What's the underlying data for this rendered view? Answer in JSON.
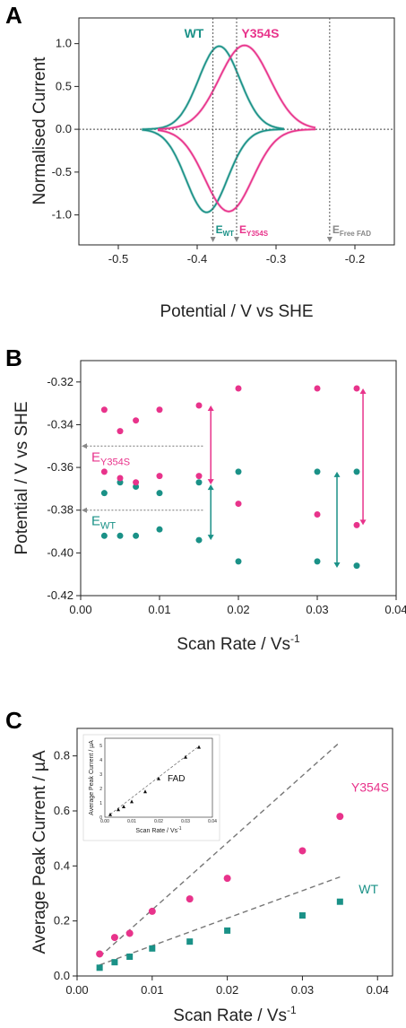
{
  "colors": {
    "wt": "#1a9187",
    "mut": "#e8338b",
    "ref": "#888888",
    "axis": "#222222"
  },
  "chart_data": [
    {
      "panel": "A",
      "type": "line",
      "xlabel": "Potential / V vs SHE",
      "ylabel": "Normalised Current",
      "xlim": [
        -0.55,
        -0.15
      ],
      "ylim": [
        -1.35,
        1.3
      ],
      "xticks": [
        "-0.5",
        "-0.4",
        "-0.3",
        "-0.2"
      ],
      "yticks": [
        "-1.0",
        "-0.5",
        "0.0",
        "0.5",
        "1.0"
      ],
      "series": [
        {
          "name": "WT",
          "oxidative_peak": {
            "x": -0.372,
            "y": 0.97
          },
          "reductive_peak": {
            "x": -0.388,
            "y": -0.97
          }
        },
        {
          "name": "Y354S",
          "oxidative_peak": {
            "x": -0.34,
            "y": 0.98
          },
          "reductive_peak": {
            "x": -0.36,
            "y": -0.96
          }
        }
      ],
      "reference_lines": [
        {
          "label": "E",
          "sub": "WT",
          "x": -0.38,
          "color": "wt"
        },
        {
          "label": "E",
          "sub": "Y354S",
          "x": -0.35,
          "color": "mut"
        },
        {
          "label": "E",
          "sub": "Free FAD",
          "x": -0.232,
          "color": "ref"
        }
      ],
      "series_labels": [
        "WT",
        "Y354S"
      ]
    },
    {
      "panel": "B",
      "type": "scatter",
      "xlabel": "Scan Rate / Vs",
      "xlabel_sup": "-1",
      "ylabel": "Potential / V vs SHE",
      "xlim": [
        0.0,
        0.04
      ],
      "ylim": [
        -0.42,
        -0.31
      ],
      "xticks": [
        "0.00",
        "0.01",
        "0.02",
        "0.03",
        "0.04"
      ],
      "yticks": [
        "-0.32",
        "-0.34",
        "-0.36",
        "-0.38",
        "-0.40",
        "-0.42"
      ],
      "series": [
        {
          "name": "WT",
          "points": [
            [
              0.003,
              -0.372
            ],
            [
              0.003,
              -0.392
            ],
            [
              0.005,
              -0.367
            ],
            [
              0.005,
              -0.392
            ],
            [
              0.007,
              -0.369
            ],
            [
              0.007,
              -0.392
            ],
            [
              0.01,
              -0.372
            ],
            [
              0.01,
              -0.389
            ],
            [
              0.015,
              -0.367
            ],
            [
              0.015,
              -0.394
            ],
            [
              0.02,
              -0.362
            ],
            [
              0.02,
              -0.404
            ],
            [
              0.03,
              -0.362
            ],
            [
              0.03,
              -0.404
            ],
            [
              0.035,
              -0.362
            ],
            [
              0.035,
              -0.406
            ]
          ]
        },
        {
          "name": "Y354S",
          "points": [
            [
              0.003,
              -0.333
            ],
            [
              0.003,
              -0.362
            ],
            [
              0.005,
              -0.343
            ],
            [
              0.005,
              -0.365
            ],
            [
              0.007,
              -0.338
            ],
            [
              0.007,
              -0.367
            ],
            [
              0.01,
              -0.333
            ],
            [
              0.01,
              -0.364
            ],
            [
              0.015,
              -0.331
            ],
            [
              0.015,
              -0.364
            ],
            [
              0.02,
              -0.323
            ],
            [
              0.02,
              -0.377
            ],
            [
              0.03,
              -0.323
            ],
            [
              0.03,
              -0.382
            ],
            [
              0.035,
              -0.323
            ],
            [
              0.035,
              -0.387
            ]
          ]
        }
      ],
      "reference_lines": [
        {
          "label": "E",
          "sub": "Y354S",
          "y": -0.35,
          "color": "mut"
        },
        {
          "label": "E",
          "sub": "WT",
          "y": -0.38,
          "color": "wt"
        }
      ],
      "arrows": [
        {
          "x": 0.0165,
          "y1": -0.331,
          "y2": -0.368,
          "color": "mut"
        },
        {
          "x": 0.0165,
          "y1": -0.368,
          "y2": -0.394,
          "color": "wt"
        },
        {
          "x": 0.0358,
          "y1": -0.323,
          "y2": -0.387,
          "color": "mut"
        },
        {
          "x": 0.0325,
          "y1": -0.362,
          "y2": -0.407,
          "color": "wt"
        }
      ]
    },
    {
      "panel": "C",
      "type": "scatter",
      "xlabel": "Scan Rate / Vs",
      "xlabel_sup": "-1",
      "ylabel": "Average Peak Current / µA",
      "xlim": [
        0.0,
        0.042
      ],
      "ylim": [
        0.0,
        0.9
      ],
      "xticks": [
        "0.00",
        "0.01",
        "0.02",
        "0.03",
        "0.04"
      ],
      "yticks": [
        "0.0",
        "0.2",
        "0.4",
        "0.6",
        "0.8"
      ],
      "series": [
        {
          "name": "Y354S",
          "marker": "circle",
          "points": [
            [
              0.003,
              0.08
            ],
            [
              0.005,
              0.14
            ],
            [
              0.007,
              0.155
            ],
            [
              0.01,
              0.235
            ],
            [
              0.015,
              0.28
            ],
            [
              0.02,
              0.355
            ],
            [
              0.03,
              0.455
            ],
            [
              0.035,
              0.58
            ]
          ]
        },
        {
          "name": "WT",
          "marker": "square",
          "points": [
            [
              0.003,
              0.03
            ],
            [
              0.005,
              0.05
            ],
            [
              0.007,
              0.07
            ],
            [
              0.01,
              0.1
            ],
            [
              0.015,
              0.125
            ],
            [
              0.02,
              0.165
            ],
            [
              0.03,
              0.22
            ],
            [
              0.035,
              0.27
            ]
          ]
        }
      ],
      "fit_lines": [
        {
          "x1": 0.003,
          "y1": 0.07,
          "x2": 0.035,
          "y2": 0.85
        },
        {
          "x1": 0.003,
          "y1": 0.04,
          "x2": 0.035,
          "y2": 0.36
        }
      ],
      "inset": {
        "label": "FAD",
        "xlabel": "Scan Rate / Vs",
        "xlabel_sup": "-1",
        "ylabel": "Average Peak Current / µA",
        "xlim": [
          0.0,
          0.04
        ],
        "ylim": [
          0,
          5.5
        ],
        "xticks": [
          "0.00",
          "0.01",
          "0.02",
          "0.03",
          "0.04"
        ],
        "yticks": [
          "0",
          "1",
          "2",
          "3",
          "4",
          "5"
        ],
        "points": [
          [
            0.002,
            0.2
          ],
          [
            0.005,
            0.55
          ],
          [
            0.007,
            0.75
          ],
          [
            0.01,
            1.1
          ],
          [
            0.015,
            1.8
          ],
          [
            0.02,
            2.7
          ],
          [
            0.03,
            4.2
          ],
          [
            0.035,
            4.9
          ]
        ]
      }
    }
  ]
}
